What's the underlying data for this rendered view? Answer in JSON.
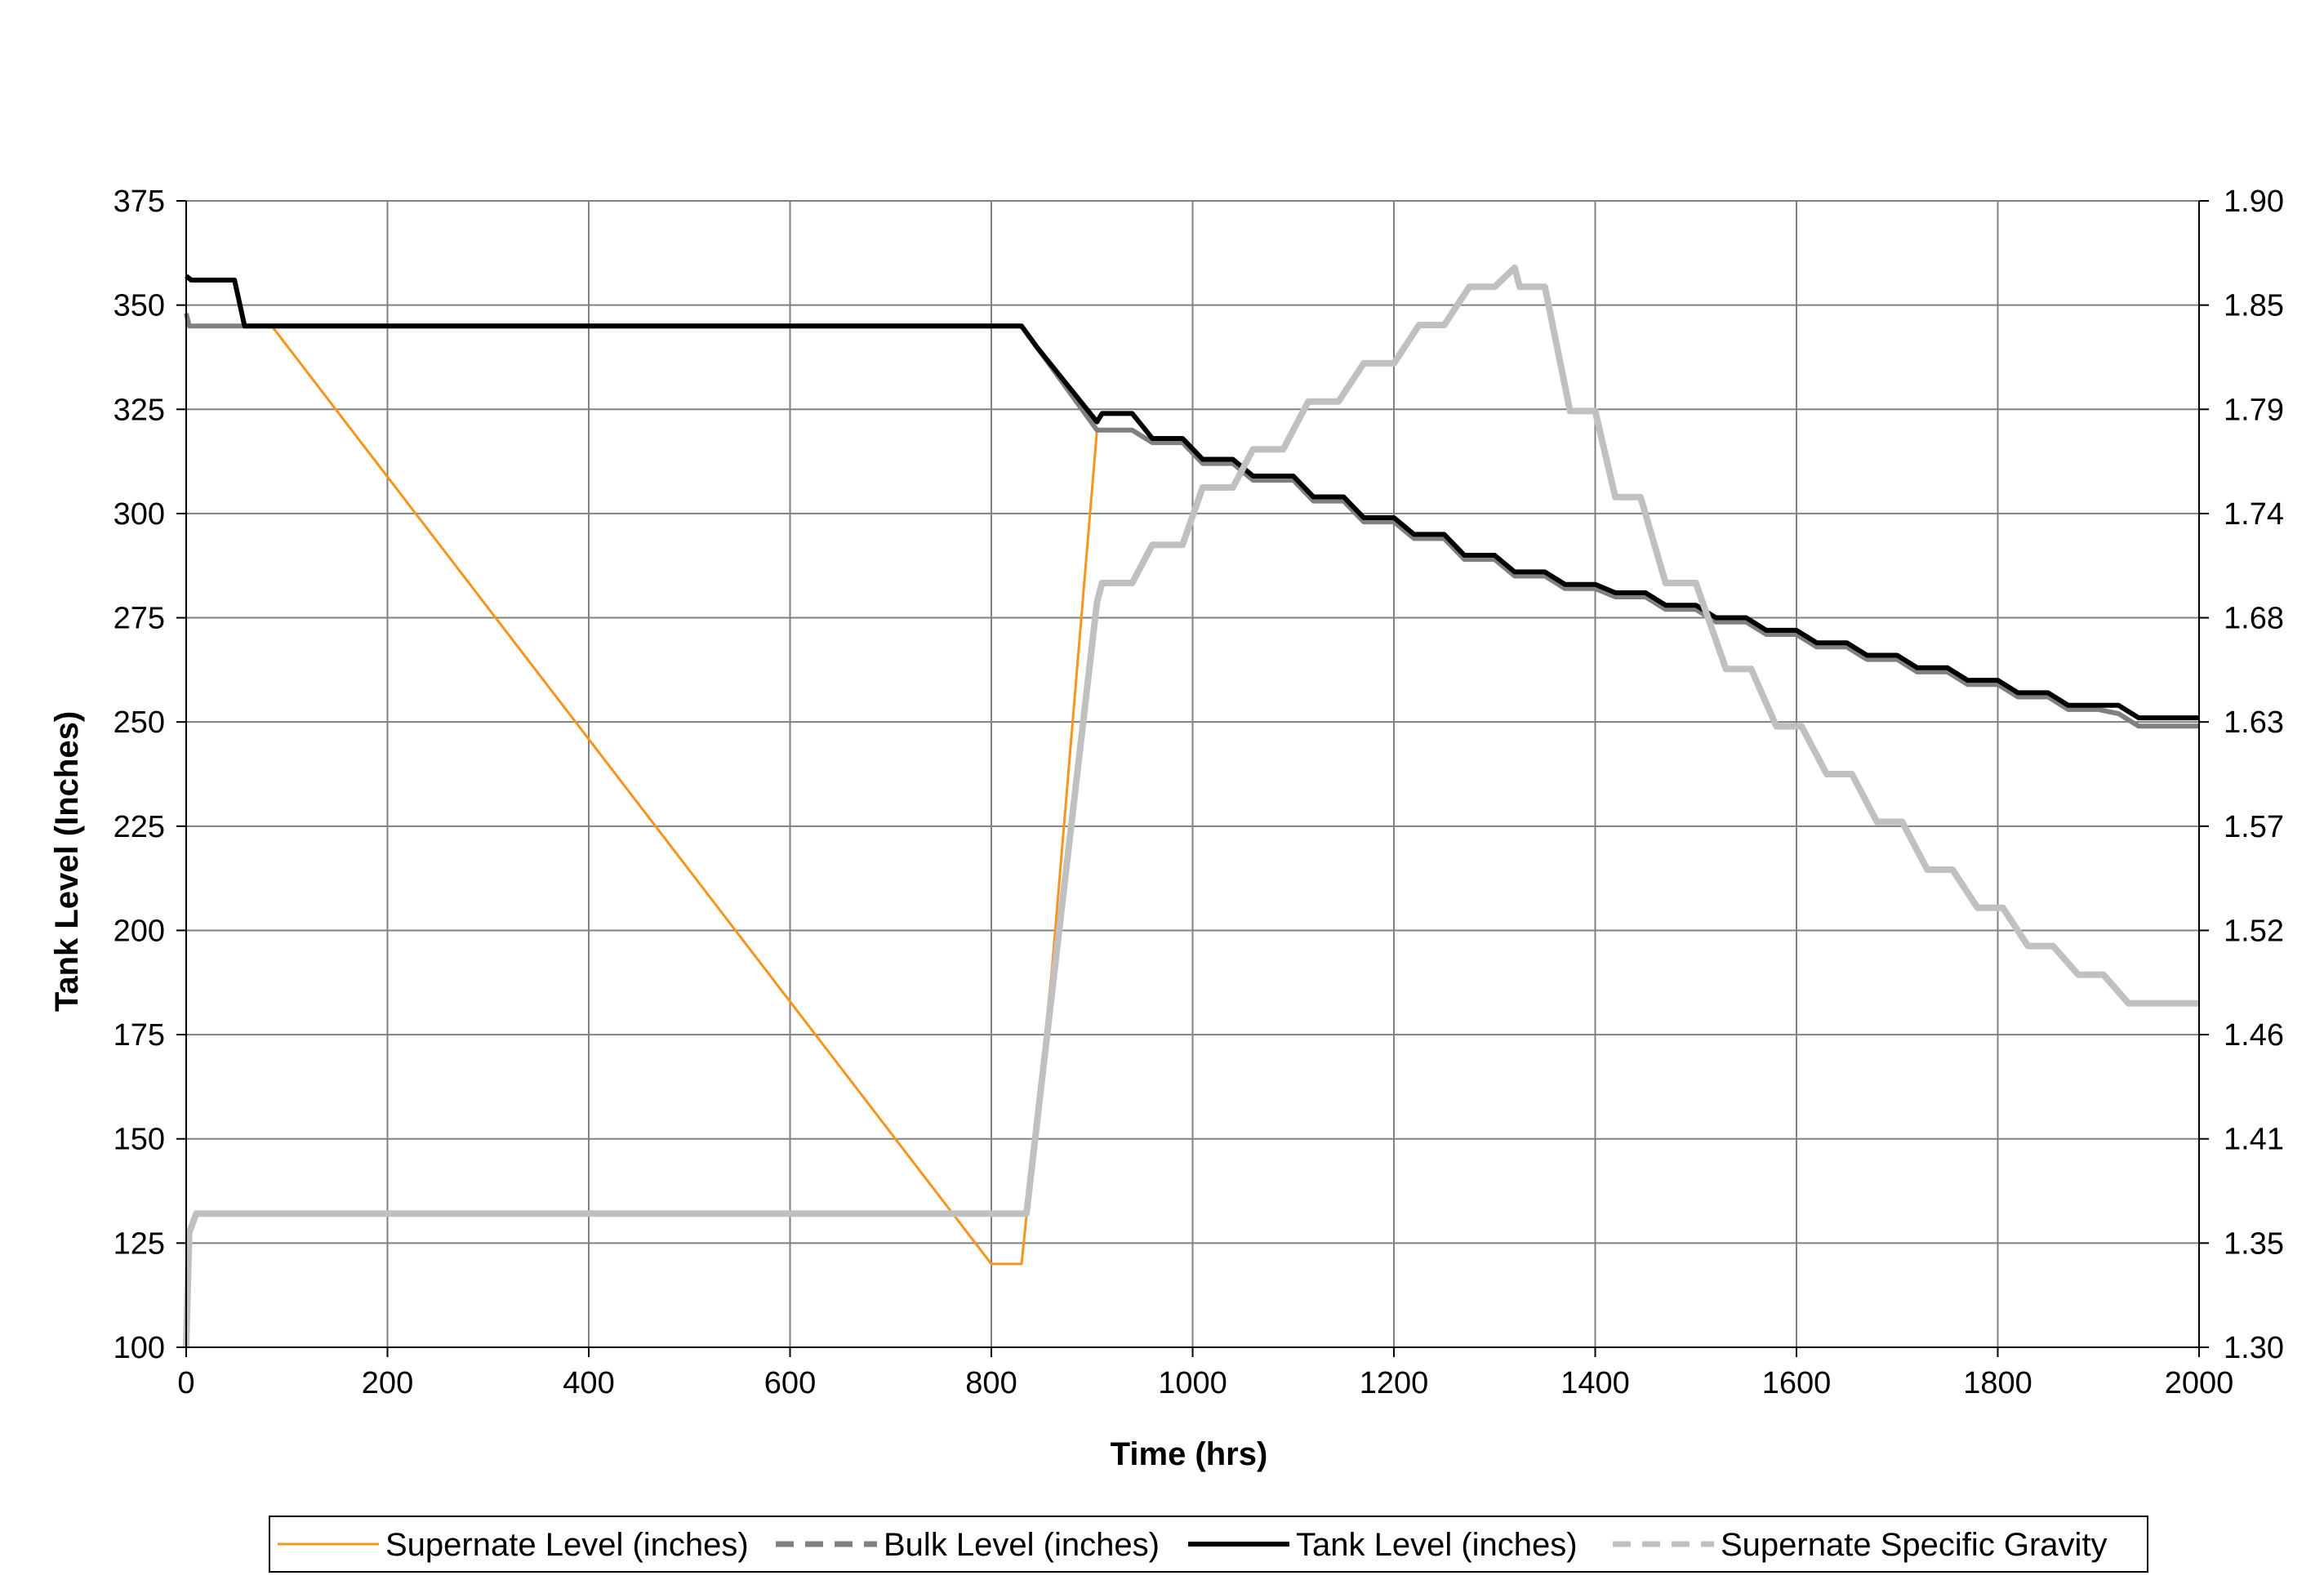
{
  "chart_data": {
    "type": "line",
    "title": "",
    "xlabel": "Time (hrs)",
    "ylabel": "Tank Level (Inches)",
    "y2label": "",
    "xlim": [
      0,
      2000
    ],
    "ylim": [
      100,
      375
    ],
    "y2lim": [
      1.3,
      1.9
    ],
    "grid": true,
    "legend_position": "bottom",
    "x_ticks": [
      "0",
      "200",
      "400",
      "600",
      "800",
      "1000",
      "1200",
      "1400",
      "1600",
      "1800",
      "2000"
    ],
    "y_ticks": [
      "100",
      "125",
      "150",
      "175",
      "200",
      "225",
      "250",
      "275",
      "300",
      "325",
      "350",
      "375"
    ],
    "y2_ticks": [
      "1.30",
      "1.35",
      "1.41",
      "1.46",
      "1.52",
      "1.57",
      "1.63",
      "1.68",
      "1.74",
      "1.79",
      "1.85",
      "1.90"
    ],
    "series": [
      {
        "name": "Supernate Level (inches)",
        "axis": "left",
        "color": "#F7941D",
        "style": "solid",
        "points": [
          [
            0,
            345
          ],
          [
            85,
            345
          ],
          [
            800,
            120
          ],
          [
            830,
            120
          ],
          [
            860,
            190
          ],
          [
            905,
            320
          ]
        ]
      },
      {
        "name": "Bulk Level (inches)",
        "axis": "left",
        "color": "#808080",
        "style": "dashed",
        "points": [
          [
            0,
            348
          ],
          [
            3,
            345
          ],
          [
            830,
            345
          ],
          [
            845,
            340
          ],
          [
            905,
            320
          ],
          [
            940,
            320
          ],
          [
            960,
            317
          ],
          [
            990,
            317
          ],
          [
            1010,
            312
          ],
          [
            1040,
            312
          ],
          [
            1060,
            308
          ],
          [
            1100,
            308
          ],
          [
            1120,
            303
          ],
          [
            1150,
            303
          ],
          [
            1170,
            298
          ],
          [
            1200,
            298
          ],
          [
            1220,
            294
          ],
          [
            1250,
            294
          ],
          [
            1270,
            289
          ],
          [
            1300,
            289
          ],
          [
            1320,
            285
          ],
          [
            1350,
            285
          ],
          [
            1370,
            282
          ],
          [
            1400,
            282
          ],
          [
            1420,
            280
          ],
          [
            1450,
            280
          ],
          [
            1470,
            277
          ],
          [
            1500,
            277
          ],
          [
            1520,
            274
          ],
          [
            1550,
            274
          ],
          [
            1570,
            271
          ],
          [
            1600,
            271
          ],
          [
            1620,
            268
          ],
          [
            1650,
            268
          ],
          [
            1670,
            265
          ],
          [
            1700,
            265
          ],
          [
            1720,
            262
          ],
          [
            1750,
            262
          ],
          [
            1770,
            259
          ],
          [
            1800,
            259
          ],
          [
            1820,
            256
          ],
          [
            1850,
            256
          ],
          [
            1870,
            253
          ],
          [
            1900,
            253
          ],
          [
            1920,
            252
          ],
          [
            1940,
            249
          ],
          [
            2000,
            249
          ]
        ]
      },
      {
        "name": "Tank Level (inches)",
        "axis": "left",
        "color": "#000000",
        "style": "solid",
        "points": [
          [
            0,
            357
          ],
          [
            5,
            356
          ],
          [
            48,
            356
          ],
          [
            58,
            345
          ],
          [
            830,
            345
          ],
          [
            845,
            340
          ],
          [
            905,
            322
          ],
          [
            910,
            324
          ],
          [
            940,
            324
          ],
          [
            960,
            318
          ],
          [
            990,
            318
          ],
          [
            1010,
            313
          ],
          [
            1040,
            313
          ],
          [
            1060,
            309
          ],
          [
            1100,
            309
          ],
          [
            1120,
            304
          ],
          [
            1150,
            304
          ],
          [
            1170,
            299
          ],
          [
            1200,
            299
          ],
          [
            1220,
            295
          ],
          [
            1250,
            295
          ],
          [
            1270,
            290
          ],
          [
            1300,
            290
          ],
          [
            1320,
            286
          ],
          [
            1350,
            286
          ],
          [
            1370,
            283
          ],
          [
            1400,
            283
          ],
          [
            1420,
            281
          ],
          [
            1450,
            281
          ],
          [
            1470,
            278
          ],
          [
            1500,
            278
          ],
          [
            1520,
            275
          ],
          [
            1550,
            275
          ],
          [
            1570,
            272
          ],
          [
            1600,
            272
          ],
          [
            1620,
            269
          ],
          [
            1650,
            269
          ],
          [
            1670,
            266
          ],
          [
            1700,
            266
          ],
          [
            1720,
            263
          ],
          [
            1750,
            263
          ],
          [
            1770,
            260
          ],
          [
            1800,
            260
          ],
          [
            1820,
            257
          ],
          [
            1850,
            257
          ],
          [
            1870,
            254
          ],
          [
            1900,
            254
          ],
          [
            1920,
            254
          ],
          [
            1940,
            251
          ],
          [
            2000,
            251
          ]
        ]
      },
      {
        "name": "Supernate Specific Gravity",
        "axis": "right",
        "color": "#C0C0C0",
        "style": "dashed",
        "points": [
          [
            0,
            1.3
          ],
          [
            3,
            1.36
          ],
          [
            10,
            1.37
          ],
          [
            835,
            1.37
          ],
          [
            905,
            1.69
          ],
          [
            910,
            1.7
          ],
          [
            940,
            1.7
          ],
          [
            960,
            1.72
          ],
          [
            990,
            1.72
          ],
          [
            1010,
            1.75
          ],
          [
            1040,
            1.75
          ],
          [
            1060,
            1.77
          ],
          [
            1090,
            1.77
          ],
          [
            1115,
            1.795
          ],
          [
            1145,
            1.795
          ],
          [
            1170,
            1.815
          ],
          [
            1200,
            1.815
          ],
          [
            1225,
            1.835
          ],
          [
            1250,
            1.835
          ],
          [
            1275,
            1.855
          ],
          [
            1300,
            1.855
          ],
          [
            1320,
            1.865
          ],
          [
            1325,
            1.855
          ],
          [
            1350,
            1.855
          ],
          [
            1375,
            1.79
          ],
          [
            1400,
            1.79
          ],
          [
            1420,
            1.745
          ],
          [
            1445,
            1.745
          ],
          [
            1470,
            1.7
          ],
          [
            1500,
            1.7
          ],
          [
            1530,
            1.655
          ],
          [
            1555,
            1.655
          ],
          [
            1580,
            1.625
          ],
          [
            1605,
            1.625
          ],
          [
            1630,
            1.6
          ],
          [
            1655,
            1.6
          ],
          [
            1680,
            1.575
          ],
          [
            1705,
            1.575
          ],
          [
            1730,
            1.55
          ],
          [
            1755,
            1.55
          ],
          [
            1780,
            1.53
          ],
          [
            1805,
            1.53
          ],
          [
            1830,
            1.51
          ],
          [
            1855,
            1.51
          ],
          [
            1880,
            1.495
          ],
          [
            1905,
            1.495
          ],
          [
            1930,
            1.48
          ],
          [
            1945,
            1.48
          ],
          [
            2000,
            1.48
          ]
        ]
      }
    ]
  }
}
